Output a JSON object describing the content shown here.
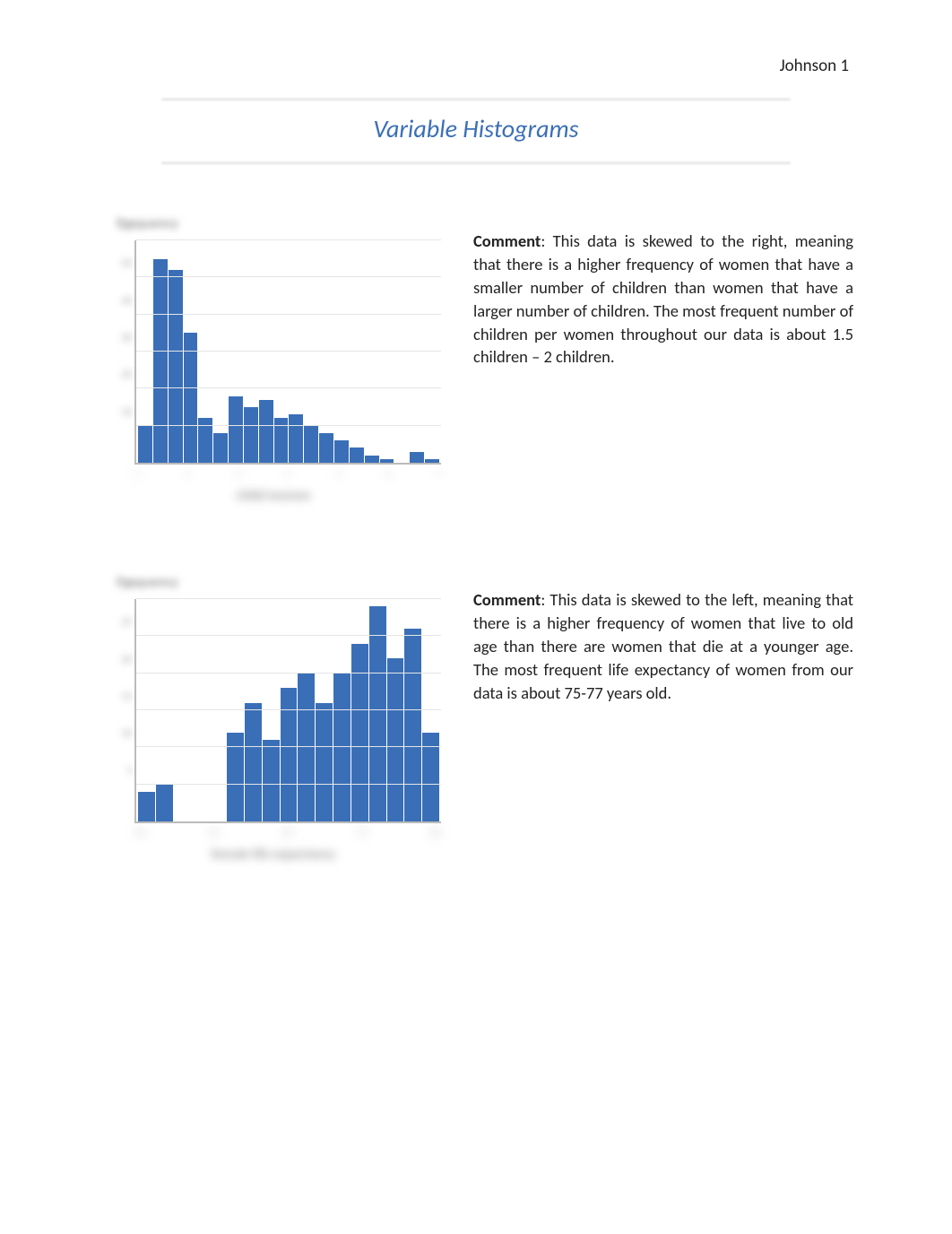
{
  "header": {
    "name": "Johnson 1"
  },
  "title": "Variable Histograms",
  "chart1": {
    "type": "histogram",
    "ylabel": "Frequency",
    "xlabel": "child/women",
    "bar_color": "#3a6fb7",
    "grid_color": "#e5e5e5",
    "axis_color": "#bbbbbb",
    "background_color": "#ffffff",
    "ylim": [
      0,
      60
    ],
    "ytick_step": 10,
    "bars": [
      10,
      55,
      52,
      35,
      12,
      8,
      18,
      15,
      17,
      12,
      13,
      10,
      8,
      6,
      4,
      2,
      1,
      0,
      3,
      1
    ],
    "comment_label": "Comment",
    "comment_text": ": This data is skewed to the right, meaning that there is a higher frequency of women that have a smaller number of children than women that have a larger number of children. The most frequent number of children per women throughout our data is about 1.5 children – 2 children."
  },
  "chart2": {
    "type": "histogram",
    "ylabel": "Frequency",
    "xlabel": "female life expectancy",
    "bar_color": "#3a6fb7",
    "grid_color": "#e5e5e5",
    "axis_color": "#bbbbbb",
    "background_color": "#ffffff",
    "ylim": [
      0,
      30
    ],
    "ytick_step": 5,
    "bars": [
      4,
      5,
      0,
      0,
      0,
      12,
      16,
      11,
      18,
      20,
      16,
      20,
      24,
      29,
      22,
      26,
      12
    ],
    "comment_label": "Comment",
    "comment_text": ": This data is skewed to the left, meaning that there is a higher frequency of women that live to old age than there are women that die at a younger age. The most frequent life expectancy of women from our data is about 75-77 years old."
  }
}
